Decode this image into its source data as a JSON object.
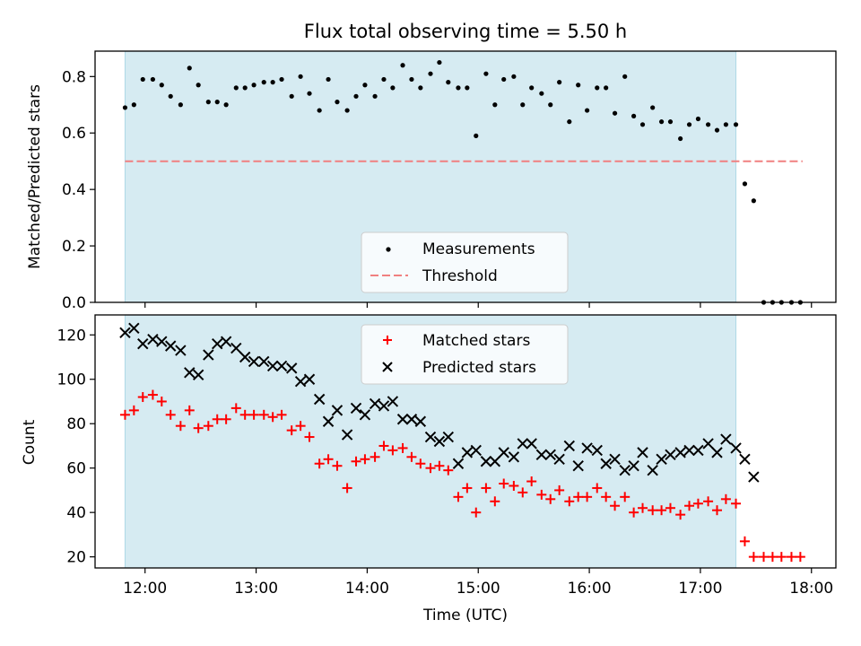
{
  "chart_data": [
    {
      "type": "scatter",
      "title": "Flux total observing time = 5.50 h",
      "xlabel": "",
      "ylabel": "Matched/Predicted stars",
      "ylim": [
        0,
        0.89
      ],
      "yticks": [
        0.0,
        0.2,
        0.4,
        0.6,
        0.8
      ],
      "ytick_labels": [
        "0.0",
        "0.2",
        "0.4",
        "0.6",
        "0.8"
      ],
      "xticks_hours": [
        12,
        13,
        14,
        15,
        16,
        17,
        18
      ],
      "shaded_span_hours": [
        11.82,
        17.32
      ],
      "shade_color": "#add8e6",
      "legend_position": "lower-center",
      "threshold": {
        "name": "Threshold",
        "value": 0.5,
        "x_range_hours": [
          11.82,
          17.92
        ],
        "color": "#f08080"
      },
      "series": [
        {
          "name": "Measurements",
          "color": "#000000",
          "x_hours": [
            11.82,
            11.9,
            11.98,
            12.07,
            12.15,
            12.23,
            12.32,
            12.4,
            12.48,
            12.57,
            12.65,
            12.73,
            12.82,
            12.9,
            12.98,
            13.07,
            13.15,
            13.23,
            13.32,
            13.4,
            13.48,
            13.57,
            13.65,
            13.73,
            13.82,
            13.9,
            13.98,
            14.07,
            14.15,
            14.23,
            14.32,
            14.4,
            14.48,
            14.57,
            14.65,
            14.73,
            14.82,
            14.9,
            14.98,
            15.07,
            15.15,
            15.23,
            15.32,
            15.4,
            15.48,
            15.57,
            15.65,
            15.73,
            15.82,
            15.9,
            15.98,
            16.07,
            16.15,
            16.23,
            16.32,
            16.4,
            16.48,
            16.57,
            16.65,
            16.73,
            16.82,
            16.9,
            16.98,
            17.07,
            17.15,
            17.23,
            17.32,
            17.4,
            17.48,
            17.57,
            17.65,
            17.73,
            17.82,
            17.9
          ],
          "y": [
            0.69,
            0.7,
            0.79,
            0.79,
            0.77,
            0.73,
            0.7,
            0.83,
            0.77,
            0.71,
            0.71,
            0.7,
            0.76,
            0.76,
            0.77,
            0.78,
            0.78,
            0.79,
            0.73,
            0.8,
            0.74,
            0.68,
            0.79,
            0.71,
            0.68,
            0.73,
            0.77,
            0.73,
            0.79,
            0.76,
            0.84,
            0.79,
            0.76,
            0.81,
            0.85,
            0.78,
            0.76,
            0.76,
            0.59,
            0.81,
            0.7,
            0.79,
            0.8,
            0.7,
            0.76,
            0.74,
            0.7,
            0.78,
            0.64,
            0.77,
            0.68,
            0.76,
            0.76,
            0.67,
            0.8,
            0.66,
            0.63,
            0.69,
            0.64,
            0.64,
            0.58,
            0.63,
            0.65,
            0.63,
            0.61,
            0.63,
            0.63,
            0.42,
            0.36,
            0.0,
            0.0,
            0.0,
            0.0,
            0.0
          ]
        }
      ]
    },
    {
      "type": "scatter",
      "title": "",
      "xlabel": "Time (UTC)",
      "ylabel": "Count",
      "ylim": [
        15,
        129
      ],
      "yticks": [
        20,
        40,
        60,
        80,
        100,
        120
      ],
      "ytick_labels": [
        "20",
        "40",
        "60",
        "80",
        "100",
        "120"
      ],
      "xticks_hours": [
        12,
        13,
        14,
        15,
        16,
        17,
        18
      ],
      "xtick_labels": [
        "12:00",
        "13:00",
        "14:00",
        "15:00",
        "16:00",
        "17:00",
        "18:00"
      ],
      "xlim_hours": [
        11.55,
        18.22
      ],
      "shaded_span_hours": [
        11.82,
        17.32
      ],
      "shade_color": "#add8e6",
      "legend_position": "upper-center",
      "series": [
        {
          "name": "Matched stars",
          "color": "#ff0000",
          "marker": "+",
          "x_hours": [
            11.82,
            11.9,
            11.98,
            12.07,
            12.15,
            12.23,
            12.32,
            12.4,
            12.48,
            12.57,
            12.65,
            12.73,
            12.82,
            12.9,
            12.98,
            13.07,
            13.15,
            13.23,
            13.32,
            13.4,
            13.48,
            13.57,
            13.65,
            13.73,
            13.82,
            13.9,
            13.98,
            14.07,
            14.15,
            14.23,
            14.32,
            14.4,
            14.48,
            14.57,
            14.65,
            14.73,
            14.82,
            14.9,
            14.98,
            15.07,
            15.15,
            15.23,
            15.32,
            15.4,
            15.48,
            15.57,
            15.65,
            15.73,
            15.82,
            15.9,
            15.98,
            16.07,
            16.15,
            16.23,
            16.32,
            16.4,
            16.48,
            16.57,
            16.65,
            16.73,
            16.82,
            16.9,
            16.98,
            17.07,
            17.15,
            17.23,
            17.32,
            17.4,
            17.48,
            17.57,
            17.65,
            17.73,
            17.82,
            17.9
          ],
          "y": [
            84,
            86,
            92,
            93,
            90,
            84,
            79,
            86,
            78,
            79,
            82,
            82,
            87,
            84,
            84,
            84,
            83,
            84,
            77,
            79,
            74,
            62,
            64,
            61,
            51,
            63,
            64,
            65,
            70,
            68,
            69,
            65,
            62,
            60,
            61,
            59,
            47,
            51,
            40,
            51,
            45,
            53,
            52,
            49,
            54,
            48,
            46,
            50,
            45,
            47,
            47,
            51,
            47,
            43,
            47,
            40,
            42,
            41,
            41,
            42,
            39,
            43,
            44,
            45,
            41,
            46,
            44,
            27,
            20,
            20,
            20,
            20,
            20,
            20
          ]
        },
        {
          "name": "Predicted stars",
          "color": "#000000",
          "marker": "x",
          "x_hours": [
            11.82,
            11.9,
            11.98,
            12.07,
            12.15,
            12.23,
            12.32,
            12.4,
            12.48,
            12.57,
            12.65,
            12.73,
            12.82,
            12.9,
            12.98,
            13.07,
            13.15,
            13.23,
            13.32,
            13.4,
            13.48,
            13.57,
            13.65,
            13.73,
            13.82,
            13.9,
            13.98,
            14.07,
            14.15,
            14.23,
            14.32,
            14.4,
            14.48,
            14.57,
            14.65,
            14.73,
            14.82,
            14.9,
            14.98,
            15.07,
            15.15,
            15.23,
            15.32,
            15.4,
            15.48,
            15.57,
            15.65,
            15.73,
            15.82,
            15.9,
            15.98,
            16.07,
            16.15,
            16.23,
            16.32,
            16.4,
            16.48,
            16.57,
            16.65,
            16.73,
            16.82,
            16.9,
            16.98,
            17.07,
            17.15,
            17.23,
            17.32,
            17.4,
            17.48
          ],
          "y": [
            121,
            123,
            116,
            118,
            117,
            115,
            113,
            103,
            102,
            111,
            116,
            117,
            114,
            110,
            108,
            108,
            106,
            106,
            105,
            99,
            100,
            91,
            81,
            86,
            75,
            87,
            84,
            89,
            88,
            90,
            82,
            82,
            81,
            74,
            72,
            74,
            62,
            67,
            68,
            63,
            63,
            67,
            65,
            71,
            71,
            66,
            66,
            64,
            70,
            61,
            69,
            68,
            62,
            64,
            59,
            61,
            67,
            59,
            64,
            66,
            67,
            68,
            68,
            71,
            67,
            73,
            69,
            64,
            56
          ]
        }
      ]
    }
  ]
}
